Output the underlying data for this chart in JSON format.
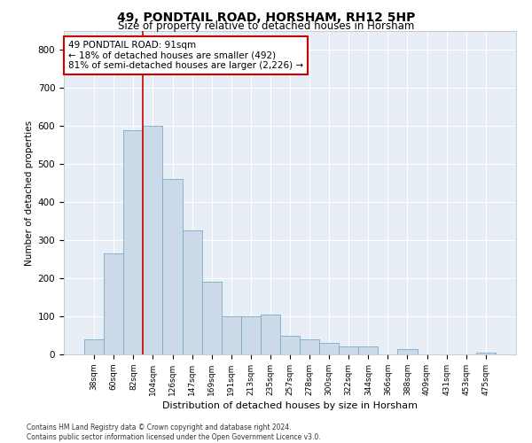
{
  "title": "49, PONDTAIL ROAD, HORSHAM, RH12 5HP",
  "subtitle": "Size of property relative to detached houses in Horsham",
  "xlabel": "Distribution of detached houses by size in Horsham",
  "ylabel": "Number of detached properties",
  "bar_color": "#ccd9e8",
  "bar_edge_color": "#7aaac8",
  "background_color": "#ffffff",
  "plot_bg_color": "#e8eef5",
  "grid_color": "#ffffff",
  "categories": [
    "38sqm",
    "60sqm",
    "82sqm",
    "104sqm",
    "126sqm",
    "147sqm",
    "169sqm",
    "191sqm",
    "213sqm",
    "235sqm",
    "257sqm",
    "278sqm",
    "300sqm",
    "322sqm",
    "344sqm",
    "366sqm",
    "388sqm",
    "409sqm",
    "431sqm",
    "453sqm",
    "475sqm"
  ],
  "values": [
    40,
    265,
    590,
    600,
    460,
    325,
    190,
    100,
    100,
    105,
    50,
    40,
    30,
    20,
    20,
    0,
    15,
    0,
    0,
    0,
    5
  ],
  "vline_x": 2.5,
  "annotation_text": "49 PONDTAIL ROAD: 91sqm\n← 18% of detached houses are smaller (492)\n81% of semi-detached houses are larger (2,226) →",
  "annotation_box_color": "#ffffff",
  "annotation_border_color": "#cc0000",
  "vline_color": "#cc0000",
  "ylim": [
    0,
    850
  ],
  "yticks": [
    0,
    100,
    200,
    300,
    400,
    500,
    600,
    700,
    800
  ],
  "footer_line1": "Contains HM Land Registry data © Crown copyright and database right 2024.",
  "footer_line2": "Contains public sector information licensed under the Open Government Licence v3.0."
}
